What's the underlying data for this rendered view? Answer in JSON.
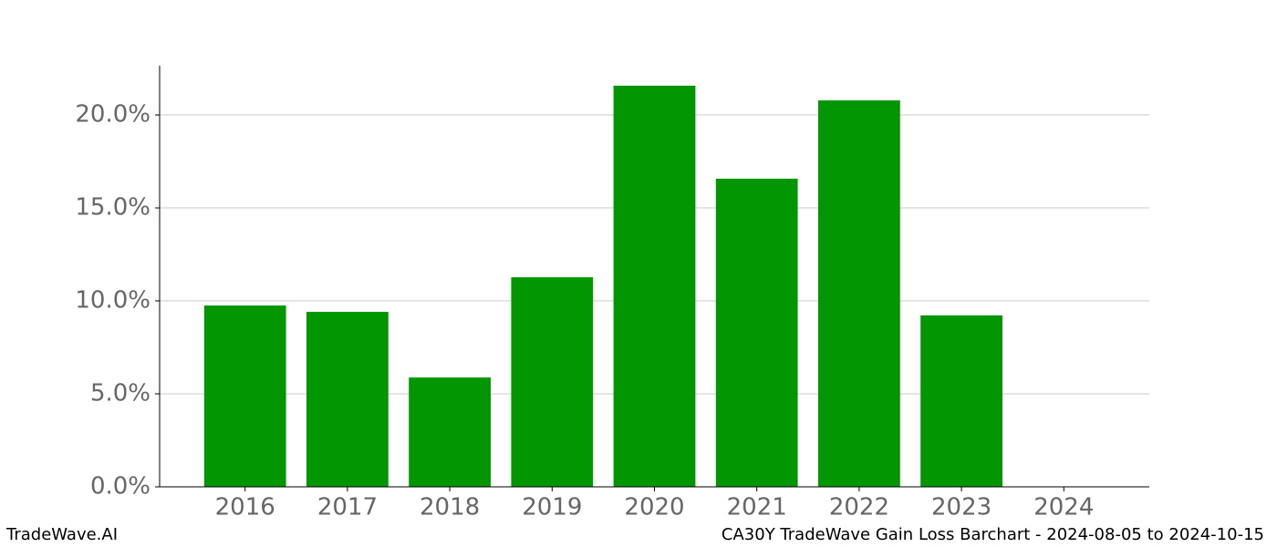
{
  "chart_data": {
    "type": "bar",
    "title": "CA30Y TradeWave Gain Loss Barchart - 2024-08-05 to 2024-10-15",
    "source": "TradeWave.AI",
    "categories": [
      "2016",
      "2017",
      "2018",
      "2019",
      "2020",
      "2021",
      "2022",
      "2023",
      "2024"
    ],
    "values": [
      9.75,
      9.41,
      5.88,
      11.27,
      21.57,
      16.57,
      20.78,
      9.22,
      0
    ],
    "color": "#039603",
    "ylim": [
      0,
      22.65
    ],
    "yticks": [
      {
        "value": 0,
        "label": "0.0%"
      },
      {
        "value": 5,
        "label": "5.0%"
      },
      {
        "value": 10,
        "label": "10.0%"
      },
      {
        "value": 15,
        "label": "15.0%"
      },
      {
        "value": 20,
        "label": "20.0%"
      }
    ],
    "grid": true
  }
}
